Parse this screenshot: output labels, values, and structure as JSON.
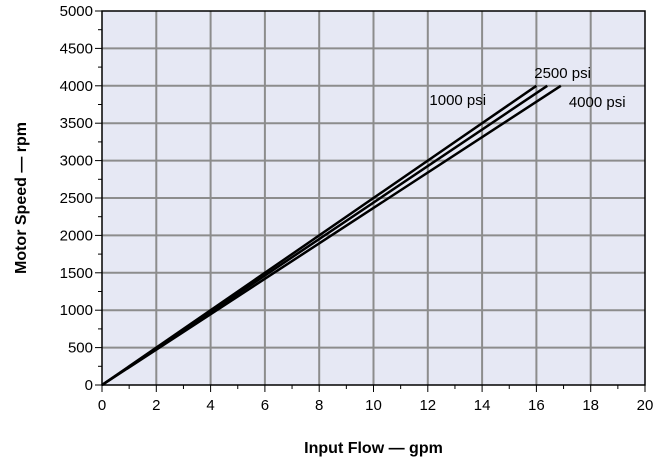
{
  "chart_data": {
    "type": "line",
    "title": "",
    "xlabel": "Input Flow — gpm",
    "ylabel": "Motor Speed — rpm",
    "xlim": [
      0,
      20
    ],
    "ylim": [
      0,
      5000
    ],
    "xticks": [
      "0",
      "2",
      "4",
      "6",
      "8",
      "10",
      "12",
      "14",
      "16",
      "18",
      "20"
    ],
    "yticks": [
      "0",
      "500",
      "1000",
      "1500",
      "2000",
      "2500",
      "3000",
      "3500",
      "4000",
      "4500",
      "5000"
    ],
    "grid": true,
    "plot_background": "#e6e8f4",
    "grid_color": "#8c8c8c",
    "line_color": "#000000",
    "series": [
      {
        "name": "1000 psi",
        "x": [
          0,
          16.0
        ],
        "y": [
          0,
          4000
        ]
      },
      {
        "name": "2500 psi",
        "x": [
          0,
          16.4
        ],
        "y": [
          0,
          4000
        ]
      },
      {
        "name": "4000 psi",
        "x": [
          0,
          16.9
        ],
        "y": [
          0,
          4000
        ]
      }
    ]
  }
}
